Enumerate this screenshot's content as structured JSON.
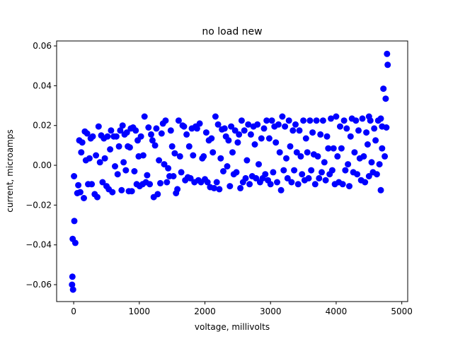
{
  "chart_data": {
    "type": "scatter",
    "title": "no load new",
    "xlabel": "voltage, millivolts",
    "ylabel": "current, microamps",
    "xlim": [
      -260,
      5090
    ],
    "ylim": [
      -0.0685,
      0.0625
    ],
    "xticks": [
      0,
      1000,
      2000,
      3000,
      4000,
      5000
    ],
    "xtick_labels": [
      "0",
      "1000",
      "2000",
      "3000",
      "4000",
      "5000"
    ],
    "yticks": [
      -0.06,
      -0.04,
      -0.02,
      0.0,
      0.02,
      0.04,
      0.06
    ],
    "ytick_labels": [
      "−0.06",
      "−0.04",
      "−0.02",
      "0.00",
      "0.02",
      "0.04",
      "0.06"
    ],
    "grid": false,
    "legend": "none",
    "marker_color": "#0000ff",
    "series": [
      {
        "points": [
          [
            -20,
            -0.056
          ],
          [
            -25,
            -0.06
          ],
          [
            -10,
            -0.0625
          ],
          [
            -15,
            -0.037
          ],
          [
            10,
            -0.028
          ],
          [
            25,
            -0.039
          ],
          [
            5,
            -0.0055
          ],
          [
            55,
            -0.014
          ],
          [
            70,
            -0.01
          ],
          [
            85,
            0.0125
          ],
          [
            100,
            -0.0135
          ],
          [
            115,
            0.0065
          ],
          [
            130,
            0.0115
          ],
          [
            155,
            -0.0165
          ],
          [
            170,
            0.017
          ],
          [
            185,
            0.0025
          ],
          [
            205,
            0.016
          ],
          [
            220,
            -0.0095
          ],
          [
            240,
            0.0035
          ],
          [
            260,
            0.0135
          ],
          [
            275,
            -0.0095
          ],
          [
            290,
            0.0145
          ],
          [
            320,
            -0.0145
          ],
          [
            340,
            0.005
          ],
          [
            360,
            -0.016
          ],
          [
            380,
            0.0195
          ],
          [
            400,
            0.0015
          ],
          [
            420,
            0.015
          ],
          [
            440,
            -0.0085
          ],
          [
            460,
            0.0135
          ],
          [
            475,
            0.0035
          ],
          [
            500,
            -0.0105
          ],
          [
            515,
            0.0145
          ],
          [
            535,
            -0.012
          ],
          [
            555,
            0.008
          ],
          [
            570,
            0.0175
          ],
          [
            590,
            -0.0135
          ],
          [
            610,
            0.0145
          ],
          [
            630,
            -0.0005
          ],
          [
            650,
            0.0145
          ],
          [
            670,
            -0.0045
          ],
          [
            690,
            0.0095
          ],
          [
            710,
            0.0175
          ],
          [
            730,
            -0.0125
          ],
          [
            745,
            0.02
          ],
          [
            760,
            0.0015
          ],
          [
            775,
            0.0155
          ],
          [
            795,
            -0.0025
          ],
          [
            810,
            0.0165
          ],
          [
            825,
            0.0095
          ],
          [
            840,
            -0.013
          ],
          [
            855,
            0.009
          ],
          [
            870,
            0.0185
          ],
          [
            885,
            -0.013
          ],
          [
            905,
            0.019
          ],
          [
            925,
            -0.003
          ],
          [
            945,
            0.0175
          ],
          [
            960,
            -0.0095
          ],
          [
            975,
            0.0125
          ],
          [
            990,
            0.0045
          ],
          [
            1005,
            -0.0105
          ],
          [
            1025,
            0.0145
          ],
          [
            1050,
            -0.0095
          ],
          [
            1060,
            0.005
          ],
          [
            1080,
            0.0245
          ],
          [
            1100,
            -0.0085
          ],
          [
            1120,
            -0.005
          ],
          [
            1140,
            0.019
          ],
          [
            1160,
            -0.0095
          ],
          [
            1180,
            0.0155
          ],
          [
            1200,
            0.0125
          ],
          [
            1220,
            -0.016
          ],
          [
            1240,
            0.01
          ],
          [
            1260,
            0.0185
          ],
          [
            1280,
            -0.0145
          ],
          [
            1300,
            0.0025
          ],
          [
            1320,
            -0.009
          ],
          [
            1340,
            0.016
          ],
          [
            1360,
            0.021
          ],
          [
            1380,
            0.0005
          ],
          [
            1400,
            0.0225
          ],
          [
            1420,
            -0.0085
          ],
          [
            1440,
            -0.0015
          ],
          [
            1460,
            -0.0055
          ],
          [
            1480,
            0.0175
          ],
          [
            1500,
            0.0095
          ],
          [
            1520,
            -0.0055
          ],
          [
            1540,
            0.006
          ],
          [
            1560,
            -0.014
          ],
          [
            1580,
            -0.012
          ],
          [
            1600,
            0.0225
          ],
          [
            1620,
            0.0045
          ],
          [
            1640,
            -0.0035
          ],
          [
            1660,
            0.02
          ],
          [
            1680,
            0.0195
          ],
          [
            1700,
            -0.0075
          ],
          [
            1720,
            0.0155
          ],
          [
            1740,
            -0.006
          ],
          [
            1760,
            0.0095
          ],
          [
            1780,
            -0.0065
          ],
          [
            1800,
            0.0185
          ],
          [
            1820,
            0.005
          ],
          [
            1840,
            -0.0085
          ],
          [
            1860,
            0.0195
          ],
          [
            1880,
            0.0185
          ],
          [
            1900,
            -0.0075
          ],
          [
            1920,
            0.021
          ],
          [
            1940,
            -0.0085
          ],
          [
            1960,
            0.0035
          ],
          [
            1980,
            0.0045
          ],
          [
            2000,
            -0.007
          ],
          [
            2020,
            0.0165
          ],
          [
            2040,
            -0.0085
          ],
          [
            2060,
            0.0125
          ],
          [
            2080,
            -0.011
          ],
          [
            2100,
            0.0135
          ],
          [
            2120,
            0.0065
          ],
          [
            2140,
            -0.0115
          ],
          [
            2160,
            0.0245
          ],
          [
            2180,
            -0.0085
          ],
          [
            2200,
            0.0205
          ],
          [
            2220,
            -0.012
          ],
          [
            2240,
            0.0035
          ],
          [
            2260,
            0.018
          ],
          [
            2280,
            -0.003
          ],
          [
            2300,
            0.0185
          ],
          [
            2320,
            0.0145
          ],
          [
            2340,
            -0.0005
          ],
          [
            2360,
            0.0125
          ],
          [
            2380,
            -0.0105
          ],
          [
            2400,
            0.0195
          ],
          [
            2420,
            0.0065
          ],
          [
            2440,
            -0.0045
          ],
          [
            2460,
            0.0175
          ],
          [
            2480,
            -0.0035
          ],
          [
            2500,
            0.0115
          ],
          [
            2520,
            0.0155
          ],
          [
            2540,
            -0.0115
          ],
          [
            2560,
            0.0225
          ],
          [
            2580,
            -0.0085
          ],
          [
            2600,
            0.0175
          ],
          [
            2620,
            -0.0065
          ],
          [
            2640,
            0.0025
          ],
          [
            2660,
            0.0205
          ],
          [
            2680,
            -0.0095
          ],
          [
            2700,
            0.0155
          ],
          [
            2720,
            -0.0055
          ],
          [
            2740,
            0.0195
          ],
          [
            2760,
            0.0105
          ],
          [
            2780,
            -0.0065
          ],
          [
            2800,
            0.0205
          ],
          [
            2820,
            0.0005
          ],
          [
            2840,
            -0.0085
          ],
          [
            2860,
            0.0135
          ],
          [
            2880,
            -0.0065
          ],
          [
            2900,
            0.0185
          ],
          [
            2920,
            -0.0045
          ],
          [
            2940,
            0.0225
          ],
          [
            2960,
            -0.0075
          ],
          [
            2980,
            0.0135
          ],
          [
            3000,
            -0.0095
          ],
          [
            3020,
            0.0225
          ],
          [
            3040,
            -0.0035
          ],
          [
            3060,
            0.0195
          ],
          [
            3080,
            0.0115
          ],
          [
            3100,
            -0.0085
          ],
          [
            3120,
            0.0205
          ],
          [
            3140,
            0.0065
          ],
          [
            3160,
            -0.0125
          ],
          [
            3180,
            0.0245
          ],
          [
            3200,
            -0.0025
          ],
          [
            3220,
            0.0195
          ],
          [
            3240,
            0.0035
          ],
          [
            3260,
            -0.0065
          ],
          [
            3280,
            0.0225
          ],
          [
            3300,
            0.0095
          ],
          [
            3320,
            -0.0085
          ],
          [
            3340,
            0.0175
          ],
          [
            3360,
            -0.0025
          ],
          [
            3380,
            0.0205
          ],
          [
            3400,
            0.0065
          ],
          [
            3420,
            -0.0095
          ],
          [
            3440,
            0.0175
          ],
          [
            3460,
            0.0045
          ],
          [
            3480,
            -0.0045
          ],
          [
            3500,
            0.0225
          ],
          [
            3520,
            -0.0075
          ],
          [
            3540,
            0.0135
          ],
          [
            3560,
            0.0065
          ],
          [
            3580,
            -0.0065
          ],
          [
            3600,
            0.0225
          ],
          [
            3620,
            -0.0025
          ],
          [
            3640,
            0.0165
          ],
          [
            3660,
            0.0055
          ],
          [
            3680,
            -0.0095
          ],
          [
            3700,
            0.0225
          ],
          [
            3720,
            0.0045
          ],
          [
            3740,
            -0.0065
          ],
          [
            3760,
            0.0155
          ],
          [
            3780,
            -0.0035
          ],
          [
            3800,
            0.0225
          ],
          [
            3820,
            0.0015
          ],
          [
            3840,
            -0.0075
          ],
          [
            3860,
            0.0145
          ],
          [
            3880,
            0.0085
          ],
          [
            3900,
            -0.0045
          ],
          [
            3920,
            0.0235
          ],
          [
            3940,
            -0.0025
          ],
          [
            3960,
            0.0085
          ],
          [
            3980,
            -0.0095
          ],
          [
            4000,
            0.0245
          ],
          [
            4020,
            0.0045
          ],
          [
            4040,
            -0.0085
          ],
          [
            4060,
            0.0195
          ],
          [
            4080,
            0.0085
          ],
          [
            4100,
            -0.0095
          ],
          [
            4120,
            0.0225
          ],
          [
            4140,
            -0.0025
          ],
          [
            4160,
            0.0185
          ],
          [
            4180,
            0.0005
          ],
          [
            4200,
            -0.0105
          ],
          [
            4220,
            0.0145
          ],
          [
            4240,
            0.0235
          ],
          [
            4260,
            -0.0035
          ],
          [
            4280,
            0.0065
          ],
          [
            4300,
            0.0225
          ],
          [
            4320,
            -0.0045
          ],
          [
            4340,
            0.0175
          ],
          [
            4360,
            0.0035
          ],
          [
            4380,
            -0.0075
          ],
          [
            4400,
            0.0235
          ],
          [
            4420,
            0.0045
          ],
          [
            4440,
            -0.0085
          ],
          [
            4460,
            0.0165
          ],
          [
            4480,
            0.0105
          ],
          [
            4500,
            -0.0055
          ],
          [
            4520,
            0.0225
          ],
          [
            4540,
            0.0015
          ],
          [
            4560,
            -0.0035
          ],
          [
            4580,
            0.0185
          ],
          [
            4600,
            0.0125
          ],
          [
            4620,
            -0.0045
          ],
          [
            4640,
            0.0225
          ],
          [
            4660,
            0.0005
          ],
          [
            4680,
            -0.0125
          ],
          [
            4700,
            0.0085
          ],
          [
            4720,
            0.0385
          ],
          [
            4740,
            0.0045
          ],
          [
            4755,
            0.0335
          ],
          [
            4765,
            0.019
          ],
          [
            4775,
            0.056
          ],
          [
            4785,
            0.0505
          ],
          [
            4700,
            0.0195
          ],
          [
            4680,
            0.0235
          ],
          [
            4500,
            0.0245
          ]
        ]
      }
    ]
  }
}
